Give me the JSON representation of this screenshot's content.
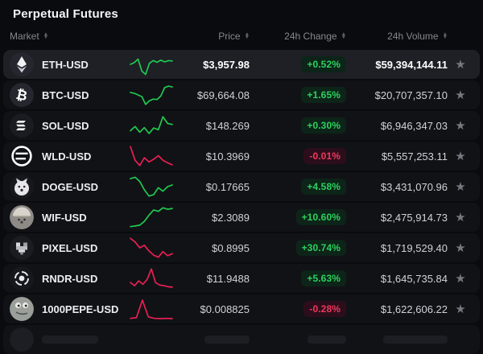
{
  "title": "Perpetual Futures",
  "columns": {
    "market": "Market",
    "price": "Price",
    "change": "24h Change",
    "volume": "24h Volume"
  },
  "favorite_icon": "★",
  "sort_icon_up": "▲",
  "sort_icon_down": "▼",
  "colors": {
    "up_text": "#2bd15f",
    "up_bg": "#0d2418",
    "down_text": "#f0365f",
    "down_bg": "#2c0e1b",
    "spark_up": "#1fc94f",
    "spark_down": "#ea1f53",
    "row_bg": "#111216",
    "row_highlight_bg": "#1e2026"
  },
  "rows": [
    {
      "symbol": "ETH-USD",
      "icon": "eth-icon",
      "price": "$3,957.98",
      "change": "+0.52%",
      "direction": "up",
      "volume": "$59,394,144.11",
      "highlighted": true,
      "spark": {
        "trend": "up",
        "points": [
          0.5,
          0.58,
          0.75,
          0.18,
          0.02,
          0.55,
          0.68,
          0.6,
          0.7,
          0.62,
          0.68,
          0.66
        ]
      }
    },
    {
      "symbol": "BTC-USD",
      "icon": "btc-icon",
      "price": "$69,664.08",
      "change": "+1.65%",
      "direction": "up",
      "volume": "$20,707,357.10",
      "highlighted": false,
      "spark": {
        "trend": "up",
        "points": [
          0.62,
          0.58,
          0.5,
          0.42,
          0.05,
          0.22,
          0.3,
          0.28,
          0.45,
          0.85,
          0.92,
          0.88
        ]
      }
    },
    {
      "symbol": "SOL-USD",
      "icon": "sol-icon",
      "price": "$148.269",
      "change": "+0.30%",
      "direction": "up",
      "volume": "$6,946,347.03",
      "highlighted": false,
      "spark": {
        "trend": "up",
        "points": [
          0.25,
          0.45,
          0.18,
          0.4,
          0.12,
          0.38,
          0.3,
          0.92,
          0.6,
          0.55
        ]
      }
    },
    {
      "symbol": "WLD-USD",
      "icon": "wld-icon",
      "price": "$10.3969",
      "change": "-0.01%",
      "direction": "down",
      "volume": "$5,557,253.11",
      "highlighted": false,
      "spark": {
        "trend": "down",
        "points": [
          0.95,
          0.3,
          0.05,
          0.42,
          0.22,
          0.35,
          0.52,
          0.3,
          0.18,
          0.08
        ]
      }
    },
    {
      "symbol": "DOGE-USD",
      "icon": "doge-icon",
      "price": "$0.17665",
      "change": "+4.58%",
      "direction": "up",
      "volume": "$3,431,070.96",
      "highlighted": false,
      "spark": {
        "trend": "up",
        "points": [
          0.88,
          0.95,
          0.75,
          0.35,
          0.05,
          0.12,
          0.45,
          0.28,
          0.5,
          0.58
        ]
      }
    },
    {
      "symbol": "WIF-USD",
      "icon": "wif-icon",
      "price": "$2.3089",
      "change": "+10.60%",
      "direction": "up",
      "volume": "$2,475,914.73",
      "highlighted": false,
      "spark": {
        "trend": "up",
        "points": [
          0.05,
          0.08,
          0.12,
          0.3,
          0.6,
          0.85,
          0.78,
          0.95,
          0.88,
          0.92
        ]
      }
    },
    {
      "symbol": "PIXEL-USD",
      "icon": "pixel-icon",
      "price": "$0.8995",
      "change": "+30.74%",
      "direction": "up",
      "volume": "$1,719,529.40",
      "highlighted": false,
      "spark": {
        "trend": "down",
        "points": [
          0.95,
          0.78,
          0.5,
          0.62,
          0.35,
          0.15,
          0.05,
          0.32,
          0.12,
          0.22
        ]
      }
    },
    {
      "symbol": "RNDR-USD",
      "icon": "rndr-icon",
      "price": "$11.9488",
      "change": "+5.63%",
      "direction": "up",
      "volume": "$1,645,735.84",
      "highlighted": false,
      "spark": {
        "trend": "down",
        "points": [
          0.3,
          0.15,
          0.38,
          0.22,
          0.45,
          0.95,
          0.3,
          0.18,
          0.15,
          0.1,
          0.08
        ]
      }
    },
    {
      "symbol": "1000PEPE-USD",
      "icon": "pepe-icon",
      "price": "$0.008825",
      "change": "-0.28%",
      "direction": "down",
      "volume": "$1,622,606.22",
      "highlighted": false,
      "spark": {
        "trend": "down",
        "points": [
          0.05,
          0.08,
          0.92,
          0.12,
          0.05,
          0.04,
          0.05,
          0.04
        ]
      }
    }
  ]
}
